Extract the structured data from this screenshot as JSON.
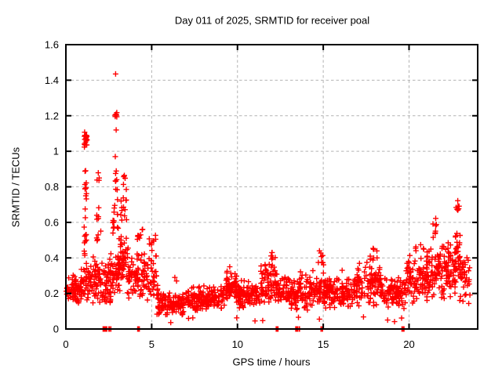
{
  "chart_data": {
    "type": "scatter",
    "title": "Day 011 of 2025, SRMTID for receiver poal",
    "xlabel": "GPS time / hours",
    "ylabel": "SRMTID / TECUs",
    "xlim": [
      0,
      24
    ],
    "ylim": [
      0,
      1.6
    ],
    "xticks": {
      "values": [
        0,
        5,
        10,
        15,
        20
      ],
      "labels": [
        "0",
        "5",
        "10",
        "15",
        "20"
      ]
    },
    "yticks": {
      "values": [
        0,
        0.2,
        0.4,
        0.6,
        0.8,
        1.0,
        1.2,
        1.4,
        1.6
      ],
      "labels": [
        "0",
        "0.2",
        "0.4",
        "0.6",
        "0.8",
        "1",
        "1.2",
        "1.4",
        "1.6"
      ]
    },
    "grid": true,
    "legend_position": "none",
    "marker": {
      "shape": "plus",
      "color": "#ff0000",
      "size": 7
    },
    "colors": {
      "axis": "#000000",
      "grid": "#b4b4b4",
      "background": "#ffffff",
      "text": "#000000"
    },
    "render_seed": 11,
    "series": [
      {
        "name": "SRMTID",
        "bands": [
          [
            0.0,
            0.9,
            0.13,
            0.31,
            75
          ],
          [
            0.85,
            1.45,
            0.15,
            0.4,
            42
          ],
          [
            1.08,
            1.24,
            1.02,
            1.13,
            18
          ],
          [
            1.1,
            1.2,
            0.6,
            1.02,
            13
          ],
          [
            1.05,
            1.25,
            0.4,
            0.6,
            10
          ],
          [
            1.45,
            2.15,
            0.14,
            0.42,
            55
          ],
          [
            1.75,
            2.05,
            0.42,
            0.72,
            10
          ],
          [
            1.8,
            1.95,
            0.82,
            0.9,
            4
          ],
          [
            2.15,
            2.62,
            0.12,
            0.4,
            40
          ],
          [
            2.6,
            3.15,
            0.15,
            0.45,
            45
          ],
          [
            2.7,
            3.05,
            0.45,
            0.75,
            16
          ],
          [
            2.82,
            3.0,
            0.75,
            0.95,
            7
          ],
          [
            2.86,
            2.98,
            1.18,
            1.27,
            6
          ],
          [
            3.1,
            3.65,
            0.2,
            0.55,
            48
          ],
          [
            3.2,
            3.55,
            0.55,
            0.8,
            13
          ],
          [
            3.3,
            3.5,
            0.8,
            0.88,
            4
          ],
          [
            3.65,
            4.12,
            0.15,
            0.42,
            34
          ],
          [
            4.1,
            4.6,
            0.15,
            0.45,
            38
          ],
          [
            4.15,
            4.5,
            0.45,
            0.58,
            8
          ],
          [
            4.55,
            5.35,
            0.12,
            0.48,
            45
          ],
          [
            4.85,
            5.25,
            0.42,
            0.56,
            9
          ],
          [
            5.3,
            6.9,
            0.07,
            0.21,
            115
          ],
          [
            6.9,
            9.3,
            0.09,
            0.25,
            170
          ],
          [
            9.3,
            10.0,
            0.13,
            0.34,
            60
          ],
          [
            10.0,
            11.3,
            0.1,
            0.28,
            100
          ],
          [
            11.3,
            12.35,
            0.12,
            0.38,
            80
          ],
          [
            11.9,
            12.2,
            0.38,
            0.44,
            5
          ],
          [
            12.35,
            13.65,
            0.1,
            0.3,
            95
          ],
          [
            13.6,
            15.25,
            0.1,
            0.33,
            115
          ],
          [
            14.65,
            15.05,
            0.33,
            0.45,
            7
          ],
          [
            15.2,
            16.85,
            0.1,
            0.3,
            115
          ],
          [
            16.8,
            18.35,
            0.12,
            0.38,
            110
          ],
          [
            17.7,
            18.15,
            0.38,
            0.46,
            8
          ],
          [
            18.3,
            19.85,
            0.1,
            0.3,
            105
          ],
          [
            19.8,
            21.05,
            0.13,
            0.42,
            90
          ],
          [
            20.3,
            21.0,
            0.42,
            0.5,
            6
          ],
          [
            21.0,
            22.15,
            0.14,
            0.5,
            85
          ],
          [
            21.35,
            21.6,
            0.5,
            0.64,
            8
          ],
          [
            22.1,
            22.75,
            0.15,
            0.5,
            55
          ],
          [
            22.65,
            23.0,
            0.25,
            0.62,
            30
          ],
          [
            22.72,
            22.92,
            0.62,
            0.745,
            8
          ],
          [
            22.95,
            23.55,
            0.12,
            0.45,
            40
          ],
          [
            5.5,
            22.5,
            0.03,
            0.07,
            12
          ]
        ],
        "zero_clusters": [
          [
            2.2,
            8,
            0.07
          ],
          [
            2.33,
            8,
            0.06
          ],
          [
            2.52,
            2,
            0.02
          ],
          [
            2.61,
            2,
            0.02
          ],
          [
            4.25,
            8,
            0.07
          ],
          [
            12.32,
            8,
            0.07
          ],
          [
            13.45,
            6,
            0.06
          ],
          [
            13.62,
            3,
            0.03
          ],
          [
            14.85,
            2,
            0.02
          ],
          [
            14.95,
            2,
            0.02
          ],
          [
            19.65,
            8,
            0.07
          ]
        ],
        "points": [
          [
            2.9,
            1.435
          ],
          [
            2.93,
            1.12
          ],
          [
            2.88,
            0.97
          ],
          [
            14.78,
            0.44
          ],
          [
            12.02,
            0.43
          ],
          [
            6.35,
            0.29
          ],
          [
            6.45,
            0.27
          ],
          [
            9.55,
            0.35
          ],
          [
            16.1,
            0.33
          ]
        ]
      }
    ]
  }
}
